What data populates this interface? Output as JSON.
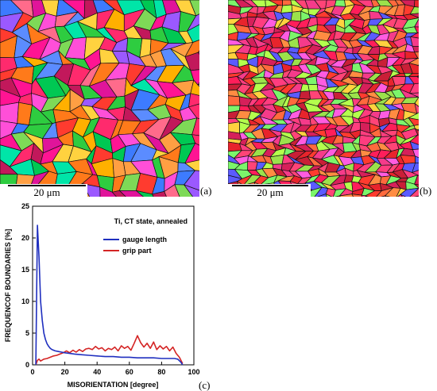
{
  "panels": {
    "a": {
      "label": "(a)",
      "scale_bar": "20 μm"
    },
    "b": {
      "label": "(b)",
      "scale_bar": "20 μm"
    },
    "c": {
      "label": "(c)"
    }
  },
  "colors": {
    "grain_palette": [
      "#ff2a6d",
      "#ff3b2f",
      "#ff7a1a",
      "#ffb000",
      "#ff4fd8",
      "#e0149a",
      "#c2185b",
      "#ff6b8b",
      "#ff9f43",
      "#ffd23f",
      "#7ed957",
      "#2ecc40",
      "#00c853",
      "#00e5a8",
      "#3d7bff",
      "#5b8cff",
      "#9b59ff",
      "#ff1493"
    ],
    "grain_palette_b": [
      "#e8242c",
      "#ff3b2f",
      "#ff1e5a",
      "#f53b8a",
      "#ff6a3d",
      "#d6205a",
      "#ff4477",
      "#c91f37",
      "#ff8c42",
      "#ff3d7f",
      "#9be24b",
      "#7cf56b",
      "#b4ff4d",
      "#ffd23f",
      "#ff5ce1",
      "#5b5bff"
    ],
    "gauge": "#1f2fbf",
    "grip": "#d42424"
  },
  "chart_data": {
    "type": "line",
    "title": "Ti, CT state, annealed",
    "xlabel": "MISORIENTATION [degree]",
    "ylabel": "FREQUENCOF BOUNDARIES [%]",
    "xlim": [
      0,
      100
    ],
    "ylim": [
      0,
      25
    ],
    "xticks": [
      0,
      20,
      40,
      60,
      80,
      100
    ],
    "yticks": [
      0,
      5,
      10,
      15,
      20,
      25
    ],
    "legend_position": "top-right",
    "grid": false,
    "series": [
      {
        "name": "gauge length",
        "color": "#1f2fbf",
        "x": [
          2,
          3,
          4,
          5,
          6,
          7,
          8,
          9,
          10,
          11,
          12,
          14,
          16,
          18,
          20,
          23,
          26,
          30,
          35,
          40,
          45,
          50,
          55,
          60,
          65,
          70,
          75,
          80,
          85,
          88,
          90,
          92,
          93
        ],
        "y": [
          0,
          22,
          17,
          10,
          7,
          5,
          4,
          3.3,
          2.9,
          2.6,
          2.4,
          2.2,
          2.1,
          2.0,
          1.9,
          1.8,
          1.7,
          1.6,
          1.5,
          1.4,
          1.3,
          1.3,
          1.2,
          1.2,
          1.1,
          1.1,
          1.1,
          1.0,
          1.0,
          1.0,
          0.9,
          0.4,
          0
        ]
      },
      {
        "name": "grip part",
        "color": "#d42424",
        "x": [
          2,
          3,
          4,
          5,
          7,
          9,
          11,
          13,
          15,
          17,
          19,
          21,
          23,
          25,
          27,
          29,
          31,
          33,
          35,
          37,
          39,
          41,
          43,
          45,
          47,
          49,
          51,
          53,
          55,
          57,
          59,
          61,
          63,
          65,
          67,
          69,
          71,
          73,
          75,
          77,
          79,
          81,
          83,
          85,
          87,
          89,
          91,
          93
        ],
        "y": [
          0,
          0.7,
          0.9,
          0.6,
          0.9,
          1.0,
          1.2,
          1.4,
          1.5,
          1.7,
          1.9,
          2.2,
          1.9,
          2.3,
          2.0,
          2.4,
          2.1,
          2.5,
          2.6,
          2.4,
          2.9,
          2.5,
          2.7,
          2.2,
          2.6,
          2.4,
          2.8,
          2.2,
          3.0,
          2.6,
          2.9,
          2.3,
          3.4,
          4.6,
          3.5,
          2.8,
          3.4,
          2.6,
          3.6,
          2.4,
          3.0,
          2.5,
          2.9,
          2.2,
          2.8,
          1.8,
          1.2,
          0.2
        ]
      }
    ]
  }
}
